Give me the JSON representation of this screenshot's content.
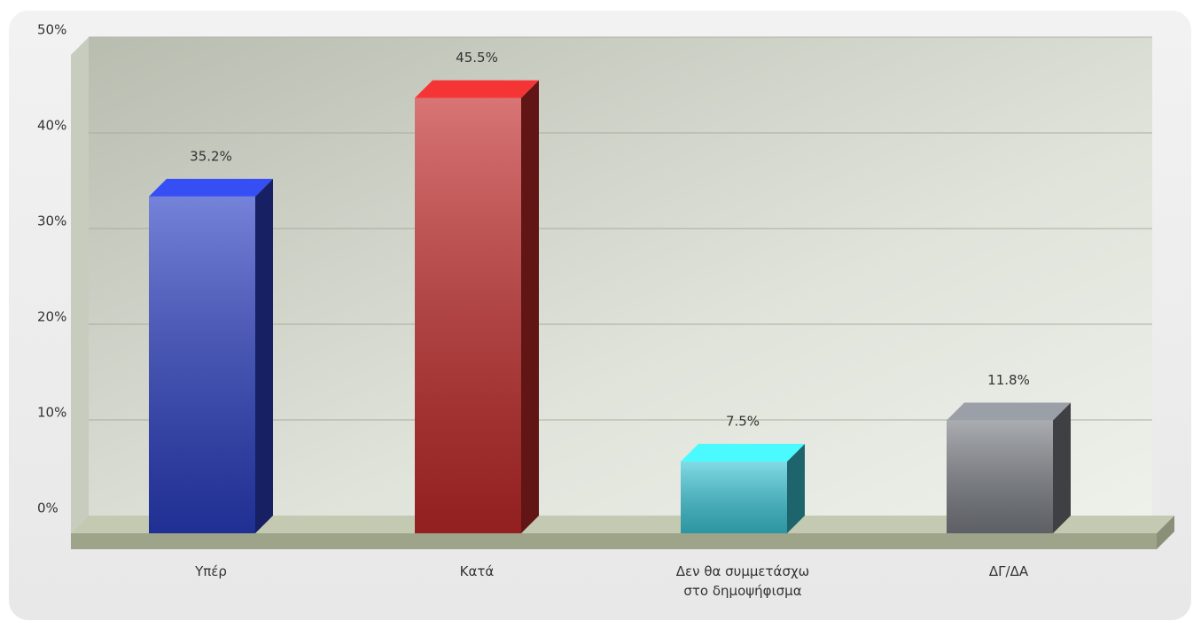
{
  "chart_data": {
    "type": "bar3d",
    "categories": [
      "Υπέρ",
      "Κατά",
      "Δεν θα συμμετάσχω\nστο δημοψήφισμα",
      "ΔΓ/ΔΑ"
    ],
    "values": [
      35.2,
      45.5,
      7.5,
      11.8
    ],
    "value_labels": [
      "35.2%",
      "45.5%",
      "7.5%",
      "11.8%"
    ],
    "colors": [
      "#2b3fc4",
      "#c42a2a",
      "#3cc8d8",
      "#7c8086"
    ],
    "ylim": [
      0,
      50
    ],
    "yticks": [
      {
        "value": 0,
        "label": "0%"
      },
      {
        "value": 10,
        "label": "10%"
      },
      {
        "value": 20,
        "label": "20%"
      },
      {
        "value": 30,
        "label": "30%"
      },
      {
        "value": 40,
        "label": "40%"
      },
      {
        "value": 50,
        "label": "50%"
      }
    ],
    "grid": true
  }
}
